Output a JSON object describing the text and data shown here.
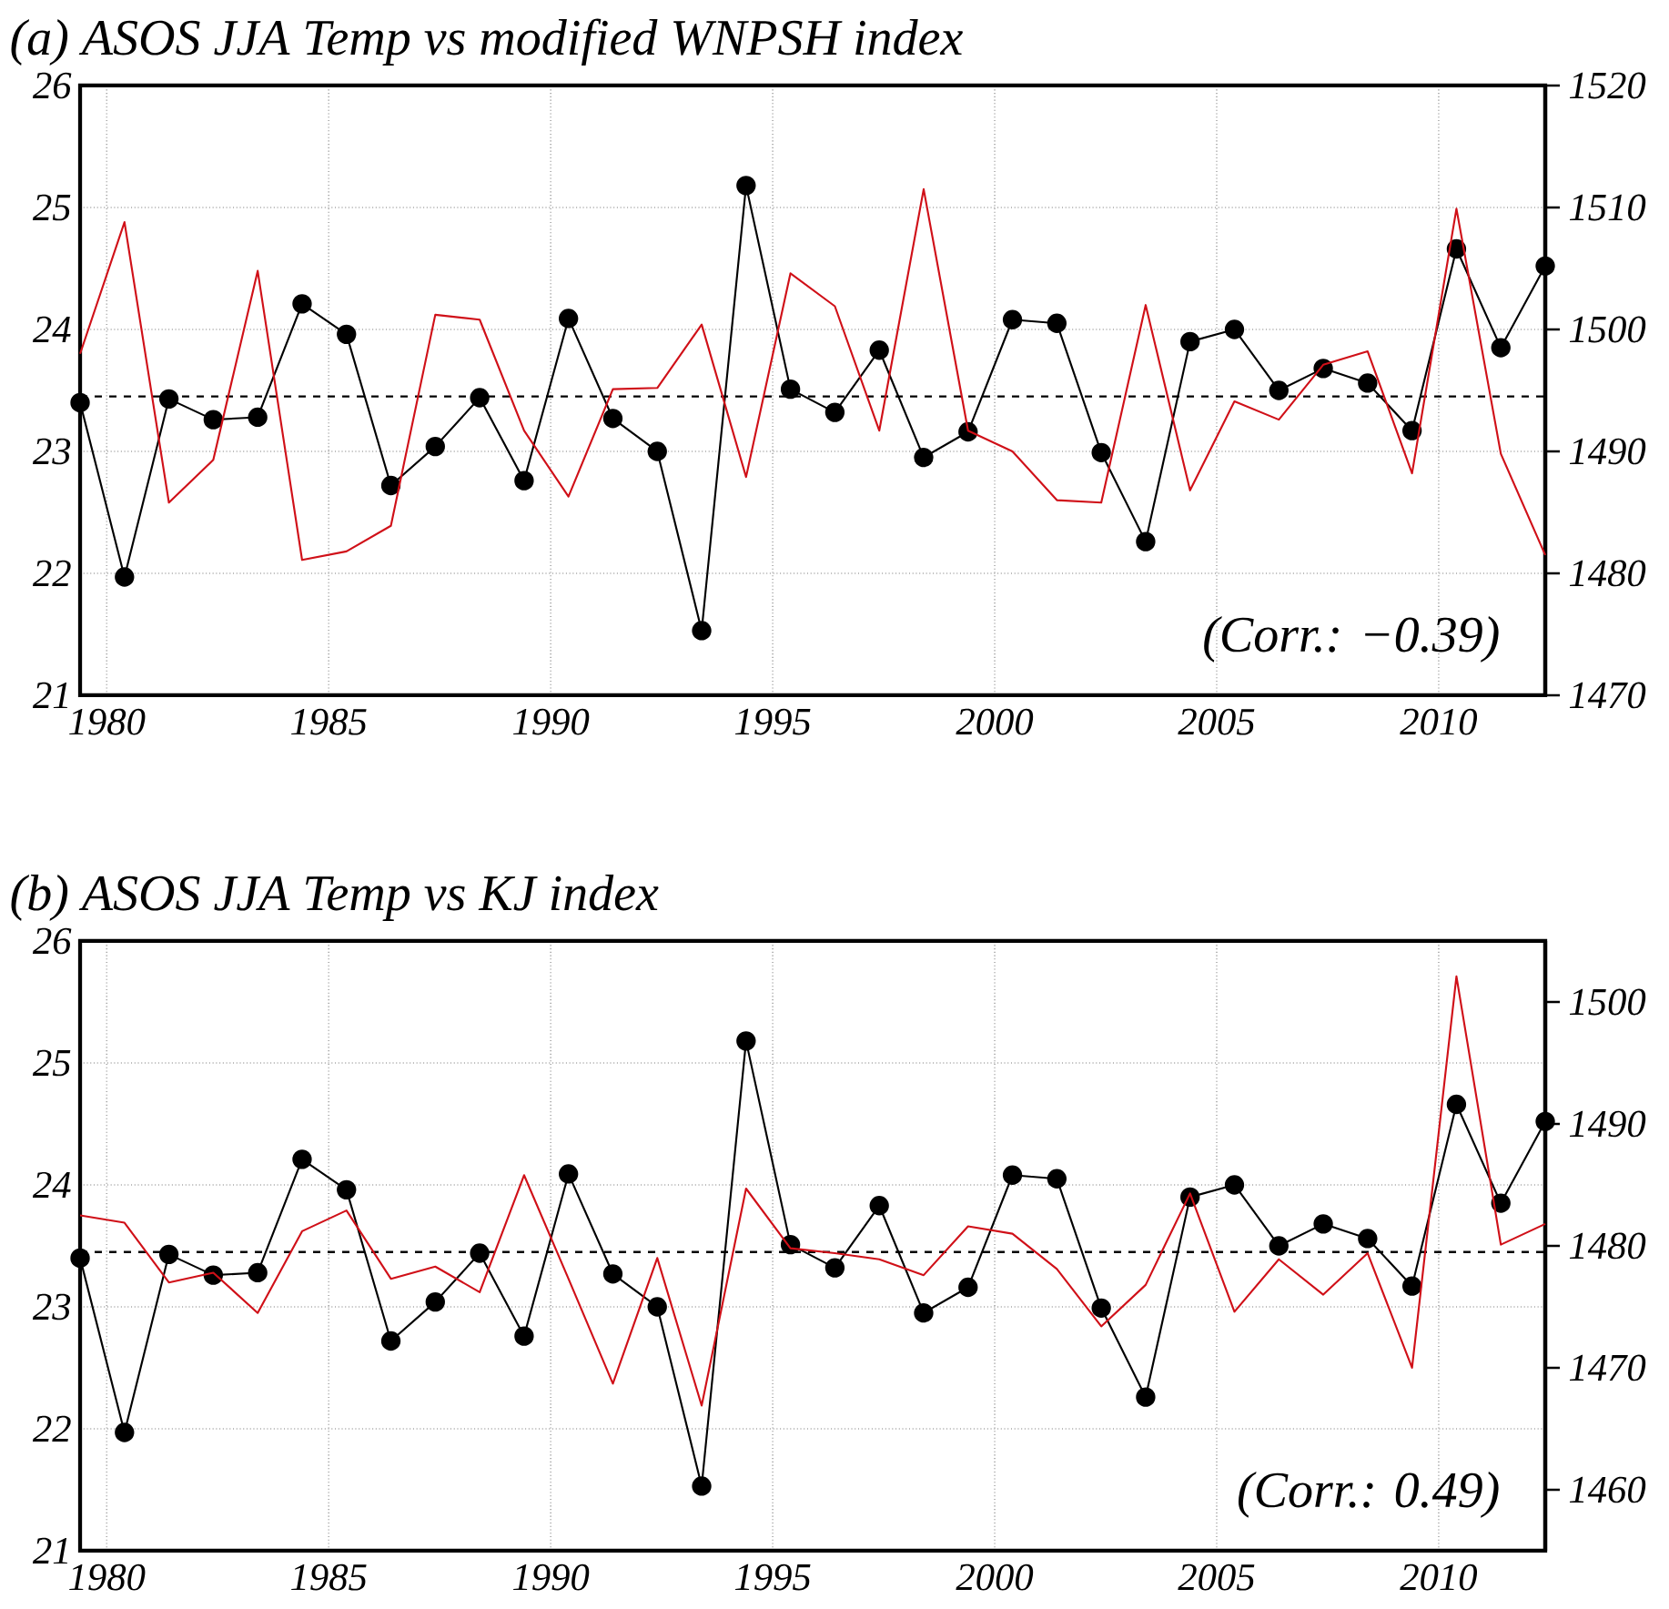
{
  "chart_data": [
    {
      "type": "line",
      "title": "(a) ASOS JJA Temp vs modified WNPSH index",
      "x": [
        1979.4,
        1980.4,
        1981.4,
        1982.4,
        1983.4,
        1984.4,
        1985.4,
        1986.4,
        1987.4,
        1988.4,
        1989.4,
        1990.4,
        1991.4,
        1992.4,
        1993.4,
        1994.4,
        1995.4,
        1996.4,
        1997.4,
        1998.4,
        1999.4,
        2000.4,
        2001.4,
        2002.4,
        2003.4,
        2004.4,
        2005.4,
        2006.4,
        2007.4,
        2008.4,
        2009.4,
        2010.4,
        2011.4,
        2012.4
      ],
      "series": [
        {
          "color": "#000000",
          "marker": "circle",
          "values": [
            23.4,
            21.97,
            23.43,
            23.26,
            23.28,
            24.21,
            23.96,
            22.72,
            23.04,
            23.44,
            22.76,
            24.09,
            23.27,
            23.0,
            21.53,
            25.18,
            23.51,
            23.32,
            23.83,
            22.95,
            23.16,
            24.08,
            24.05,
            22.99,
            22.26,
            23.9,
            24.0,
            23.5,
            23.68,
            23.56,
            23.17,
            24.66,
            23.85,
            24.52
          ]
        },
        {
          "color": "#d01018",
          "axis": "y2",
          "marker": "none",
          "values": [
            1498.0,
            1508.8,
            1485.8,
            1489.3,
            1504.8,
            1481.1,
            1481.8,
            1483.9,
            1501.2,
            1500.8,
            1491.7,
            1486.3,
            1495.1,
            1495.2,
            1500.4,
            1487.9,
            1504.6,
            1501.9,
            1491.7,
            1511.5,
            1491.7,
            1490.0,
            1486.0,
            1485.8,
            1502.0,
            1486.8,
            1494.1,
            1492.6,
            1497.1,
            1498.2,
            1488.2,
            1509.9,
            1489.8,
            1481.5
          ]
        }
      ],
      "xlim": [
        1979.4,
        2012.4
      ],
      "xticks": [
        1980,
        1985,
        1990,
        1995,
        2000,
        2005,
        2010
      ],
      "ylim": [
        21,
        26
      ],
      "yticks": [
        21,
        22,
        23,
        24,
        25,
        26
      ],
      "y2lim": [
        1470,
        1520
      ],
      "y2ticks": [
        1470,
        1480,
        1490,
        1500,
        1510,
        1520
      ],
      "ref_lines": [
        {
          "axis": "y",
          "value": 23.45,
          "color": "#000000",
          "line_style": "dashed"
        }
      ],
      "annotations": [
        "(Corr.: −0.39)"
      ],
      "grid": true
    },
    {
      "type": "line",
      "title": "(b) ASOS JJA Temp vs KJ index",
      "x": [
        1979.4,
        1980.4,
        1981.4,
        1982.4,
        1983.4,
        1984.4,
        1985.4,
        1986.4,
        1987.4,
        1988.4,
        1989.4,
        1990.4,
        1991.4,
        1992.4,
        1993.4,
        1994.4,
        1995.4,
        1996.4,
        1997.4,
        1998.4,
        1999.4,
        2000.4,
        2001.4,
        2002.4,
        2003.4,
        2004.4,
        2005.4,
        2006.4,
        2007.4,
        2008.4,
        2009.4,
        2010.4,
        2011.4,
        2012.4
      ],
      "series": [
        {
          "color": "#000000",
          "marker": "circle",
          "values": [
            23.4,
            21.97,
            23.43,
            23.26,
            23.28,
            24.21,
            23.96,
            22.72,
            23.04,
            23.44,
            22.76,
            24.09,
            23.27,
            23.0,
            21.53,
            25.18,
            23.51,
            23.32,
            23.83,
            22.95,
            23.16,
            24.08,
            24.05,
            22.99,
            22.26,
            23.9,
            24.0,
            23.5,
            23.68,
            23.56,
            23.17,
            24.66,
            23.85,
            24.52
          ]
        },
        {
          "color": "#d01018",
          "axis": "y2",
          "marker": "none",
          "values": [
            1482.5,
            1481.9,
            1477.0,
            1477.8,
            1474.5,
            1481.2,
            1482.9,
            1477.3,
            1478.3,
            1476.2,
            1485.8,
            1477.3,
            1468.7,
            1479.0,
            1466.9,
            1484.7,
            1479.8,
            1479.4,
            1478.9,
            1477.6,
            1481.6,
            1481.0,
            1478.1,
            1473.4,
            1476.8,
            1484.3,
            1474.6,
            1478.9,
            1476.0,
            1479.4,
            1470.0,
            1502.1,
            1480.1,
            1481.8
          ]
        }
      ],
      "xlim": [
        1979.4,
        2012.4
      ],
      "xticks": [
        1980,
        1985,
        1990,
        1995,
        2000,
        2005,
        2010
      ],
      "ylim": [
        21,
        26
      ],
      "yticks": [
        21,
        22,
        23,
        24,
        25,
        26
      ],
      "y2lim": [
        1455,
        1505
      ],
      "y2ticks": [
        1460,
        1470,
        1480,
        1490,
        1500
      ],
      "ref_lines": [
        {
          "axis": "y",
          "value": 23.45,
          "color": "#000000",
          "line_style": "dashed"
        }
      ],
      "annotations": [
        "(Corr.: 0.49)"
      ],
      "grid": true
    }
  ]
}
